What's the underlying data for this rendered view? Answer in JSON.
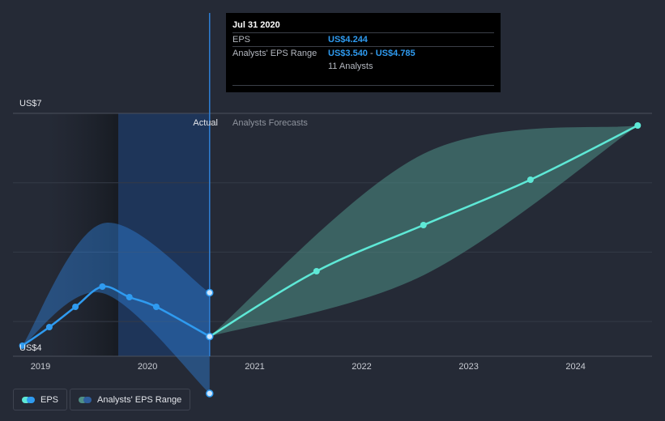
{
  "tooltip": {
    "date": "Jul 31 2020",
    "eps_label": "EPS",
    "eps_value": "US$4.244",
    "range_label": "Analysts' EPS Range",
    "range_low": "US$3.540",
    "range_sep": " - ",
    "range_high": "US$4.785",
    "analysts": "11 Analysts"
  },
  "labels": {
    "actual": "Actual",
    "forecast": "Analysts Forecasts"
  },
  "legend": {
    "eps": "EPS",
    "range": "Analysts' EPS Range"
  },
  "colors": {
    "background": "#252a36",
    "eps_actual": "#2f9bf0",
    "eps_forecast": "#5ee8d6",
    "range_actual": "#2f7fd6",
    "range_forecast": "#4f8f86",
    "actual_region": "#1c3a66"
  },
  "chart_data": {
    "type": "line",
    "y_axis": {
      "min": 4,
      "max": 7,
      "unit": "US$",
      "tick_labels": [
        "US$7",
        "US$4"
      ]
    },
    "x_axis": {
      "ticks": [
        "2019",
        "2020",
        "2021",
        "2022",
        "2023",
        "2024"
      ]
    },
    "divider_date": "2020-07-31",
    "series": [
      {
        "name": "EPS",
        "kind": "actual",
        "points": [
          {
            "x": "2018-10-31",
            "y": 4.13
          },
          {
            "x": "2019-01-31",
            "y": 4.36
          },
          {
            "x": "2019-04-30",
            "y": 4.61
          },
          {
            "x": "2019-07-31",
            "y": 4.86
          },
          {
            "x": "2019-10-31",
            "y": 4.73
          },
          {
            "x": "2020-01-31",
            "y": 4.61
          },
          {
            "x": "2020-07-31",
            "y": 4.244
          }
        ]
      },
      {
        "name": "EPS",
        "kind": "forecast",
        "points": [
          {
            "x": "2020-07-31",
            "y": 4.244
          },
          {
            "x": "2021-07-31",
            "y": 5.05
          },
          {
            "x": "2022-07-31",
            "y": 5.62
          },
          {
            "x": "2023-07-31",
            "y": 6.18
          },
          {
            "x": "2024-07-31",
            "y": 6.85
          }
        ]
      }
    ],
    "ranges": [
      {
        "name": "Analysts' EPS Range",
        "kind": "actual",
        "points": [
          {
            "x": "2018-10-31",
            "low": 4.13,
            "high": 4.13
          },
          {
            "x": "2019-07-31",
            "low": 4.78,
            "high": 5.64
          },
          {
            "x": "2020-07-31",
            "low": 3.54,
            "high": 4.785
          }
        ]
      },
      {
        "name": "Analysts' EPS Range",
        "kind": "forecast",
        "points": [
          {
            "x": "2020-07-31",
            "low": 4.244,
            "high": 4.244
          },
          {
            "x": "2022-07-31",
            "low": 5.0,
            "high": 6.5
          },
          {
            "x": "2024-07-31",
            "low": 6.85,
            "high": 6.85
          }
        ]
      }
    ]
  }
}
